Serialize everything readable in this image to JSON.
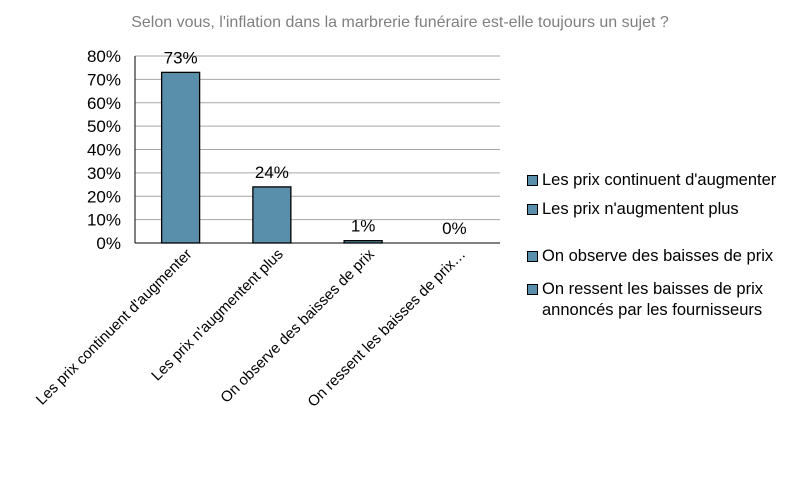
{
  "chart_data": {
    "type": "bar",
    "title": "Selon vous, l'inflation dans la marbrerie funéraire est-elle toujours un sujet ?",
    "categories": [
      "Les prix continuent d'augmenter",
      "Les prix n'augmentent plus",
      "On observe des baisses de prix",
      "On ressent les baisses de prix…"
    ],
    "values": [
      73,
      24,
      1,
      0
    ],
    "data_labels": [
      "73%",
      "24%",
      "1%",
      "0%"
    ],
    "y_ticks": [
      "0%",
      "10%",
      "20%",
      "30%",
      "40%",
      "50%",
      "60%",
      "70%",
      "80%"
    ],
    "ylim": [
      0,
      80
    ],
    "grid": true,
    "bar_color": "#5a8fab",
    "legend_position": "right",
    "legend": [
      "Les prix continuent d'augmenter",
      "Les prix n'augmentent plus",
      "On observe des baisses de prix",
      "On ressent les baisses de prix annoncés par les fournisseurs"
    ]
  }
}
